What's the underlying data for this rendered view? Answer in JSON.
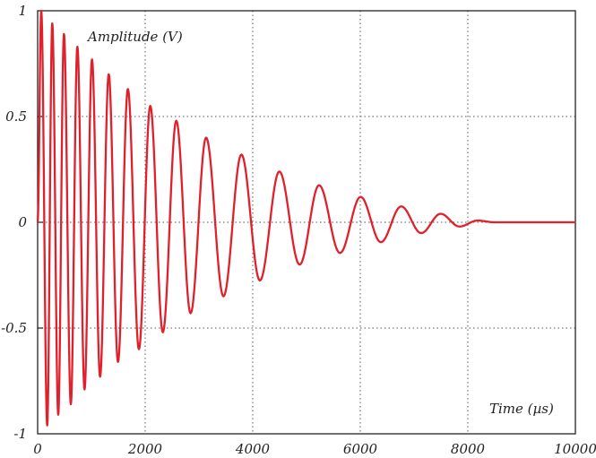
{
  "chart_data": {
    "type": "line",
    "title": "",
    "xlabel": "Time (µs)",
    "ylabel": "Amplitude (V)",
    "xlim": [
      0,
      10000
    ],
    "ylim": [
      -1,
      1
    ],
    "xticks": [
      0,
      2000,
      4000,
      6000,
      8000,
      10000
    ],
    "xtick_labels": [
      "0",
      "2000",
      "4000",
      "6000",
      "8000",
      "10000"
    ],
    "yticks": [
      1,
      0.5,
      0,
      -0.5,
      -1
    ],
    "ytick_labels": [
      "1",
      "0.5",
      "0",
      "-0.5",
      "-1"
    ],
    "grid": true,
    "grid_style": "dotted",
    "line_color": "#e0202a",
    "series": [
      {
        "points_are": "extrema (time, amplitude) of a damped oscillation",
        "x": [
          0,
          67,
          178,
          272,
          383,
          489,
          617,
          739,
          872,
          1011,
          1161,
          1322,
          1494,
          1678,
          1883,
          2094,
          2328,
          2578,
          2844,
          3133,
          3456,
          3789,
          4133,
          4494,
          4872,
          5233,
          5622,
          6006,
          6383,
          6761,
          7133,
          7494,
          7844,
          8178,
          8500,
          10000
        ],
        "y": [
          0,
          1.0,
          -0.96,
          0.94,
          -0.91,
          0.89,
          -0.86,
          0.83,
          -0.79,
          0.77,
          -0.73,
          0.7,
          -0.66,
          0.63,
          -0.6,
          0.55,
          -0.52,
          0.48,
          -0.43,
          0.4,
          -0.35,
          0.32,
          -0.275,
          0.24,
          -0.2,
          0.175,
          -0.145,
          0.12,
          -0.094,
          0.075,
          -0.051,
          0.04,
          -0.02,
          0.008,
          0,
          0
        ]
      }
    ]
  }
}
